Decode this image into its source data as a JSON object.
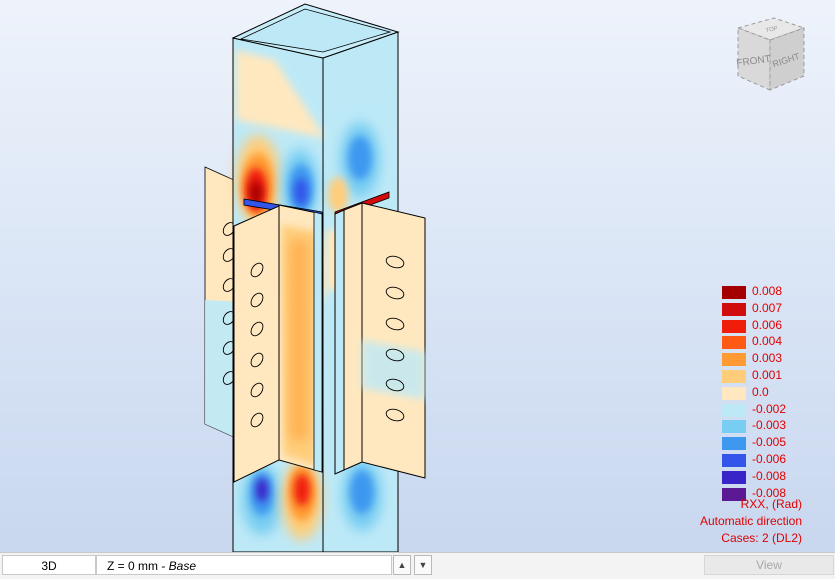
{
  "viewcube": {
    "front": "FRONT",
    "right": "RIGHT",
    "top": "TOP"
  },
  "legend": {
    "entries": [
      {
        "value": "0.008",
        "color": "#a50000"
      },
      {
        "value": "0.007",
        "color": "#d00c0c"
      },
      {
        "value": "0.006",
        "color": "#f01d0a"
      },
      {
        "value": "0.004",
        "color": "#ff5a14"
      },
      {
        "value": "0.003",
        "color": "#ff9a32"
      },
      {
        "value": "0.001",
        "color": "#ffcd7a"
      },
      {
        "value": "0.0",
        "color": "#ffe8bf"
      },
      {
        "value": "-0.002",
        "color": "#bde9f7"
      },
      {
        "value": "-0.003",
        "color": "#78cdf2"
      },
      {
        "value": "-0.005",
        "color": "#3e98f0"
      },
      {
        "value": "-0.006",
        "color": "#3355ea"
      },
      {
        "value": "-0.008",
        "color": "#3a24c8"
      },
      {
        "value": "-0.008",
        "color": "#5b1a93"
      }
    ],
    "quantity": "RXX, (Rad)",
    "direction": "Automatic direction",
    "cases": "Cases: 2 (DL2)"
  },
  "statusbar": {
    "view_mode": "3D",
    "level_prefix": "Z = 0 mm - ",
    "level_name": "Base",
    "view_button": "View"
  }
}
